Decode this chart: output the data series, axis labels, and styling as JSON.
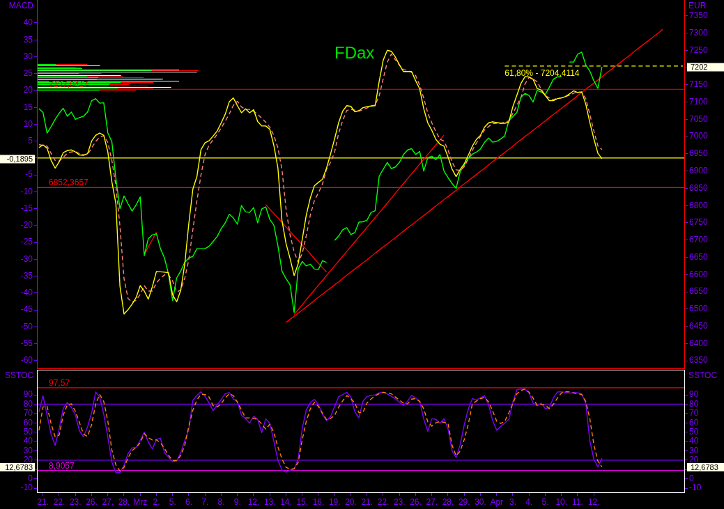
{
  "chart_data": [
    {
      "type": "line",
      "title": "FDax",
      "ylabel": "MACD",
      "y2label": "EUR",
      "categories": [
        null,
        null,
        null,
        null,
        null,
        null,
        null,
        null,
        null,
        null,
        null,
        null,
        null,
        null,
        null,
        null,
        null,
        null,
        null,
        null,
        null,
        null,
        null,
        null,
        null,
        null,
        null,
        null,
        null,
        null,
        null,
        null,
        null,
        null,
        null,
        null,
        null,
        null,
        null,
        null,
        null,
        null,
        null,
        null,
        null,
        null,
        null,
        null,
        null,
        null,
        null,
        null,
        null,
        null,
        null,
        null,
        null,
        null,
        null,
        null,
        null,
        null,
        null,
        null,
        null,
        null,
        null,
        null,
        null,
        null,
        null,
        null,
        null,
        null,
        null,
        null,
        null,
        null,
        null,
        null,
        null,
        null,
        null,
        null,
        null,
        null,
        null,
        null,
        null,
        null,
        null,
        null,
        null,
        null,
        null,
        null,
        null,
        null,
        null,
        null,
        null,
        null,
        null,
        null,
        null,
        null,
        null,
        null,
        null,
        null,
        null,
        null,
        null,
        null,
        null,
        null,
        null,
        null,
        null,
        null,
        null,
        null,
        null,
        null,
        null,
        null,
        null,
        null,
        null,
        null,
        null,
        null,
        null,
        null,
        null,
        null,
        null,
        null,
        null,
        null,
        null,
        null,
        null,
        null,
        null,
        null,
        null,
        null,
        null,
        null,
        null,
        null,
        null,
        null,
        null,
        null,
        null,
        null,
        null,
        null
      ],
      "ylim": [
        -62.5,
        46.8
      ],
      "yticks": [
        40,
        35,
        30,
        25,
        20,
        15,
        10,
        5,
        {
          "value": 0,
          "label": null
        },
        -5,
        -10,
        -15,
        -20,
        -25,
        -30,
        -35,
        -40,
        -45,
        -50,
        -55,
        -60
      ],
      "y2lim": [
        6326,
        7396
      ],
      "y2ticks": [
        7350,
        7300,
        7250,
        {
          "value": 7200,
          "label": null
        },
        7150,
        7100,
        7050,
        7000,
        6950,
        6900,
        6850,
        6800,
        6750,
        6700,
        6650,
        6600,
        6550,
        6500,
        6450,
        6400,
        6350
      ],
      "series": [
        {
          "color": "#ff0000",
          "axis": "y2",
          "values": [
            null,
            null,
            null,
            null,
            null,
            null,
            null,
            null,
            null,
            null,
            null,
            null,
            null,
            null,
            null,
            null,
            null,
            null,
            null,
            null,
            null,
            null,
            null,
            null,
            null,
            null,
            6658,
            6680,
            6701,
            6723,
            null,
            null,
            null,
            null,
            null,
            null,
            null,
            null,
            null,
            null,
            null,
            null,
            null,
            null,
            null,
            null,
            null,
            null,
            null,
            null,
            null,
            null,
            null,
            null,
            null,
            null,
            null,
            null,
            null,
            null,
            null,
            null,
            null,
            null,
            null,
            null,
            null,
            null,
            null,
            null,
            null,
            null,
            null,
            null,
            null,
            null,
            null,
            null,
            null,
            null,
            null,
            null,
            null,
            null,
            null,
            null,
            null,
            null,
            null,
            null,
            null,
            null,
            null,
            null,
            null,
            null,
            null,
            null,
            null,
            null,
            null,
            null,
            null,
            null,
            null,
            null,
            null,
            null,
            null,
            null,
            null,
            null,
            null,
            null,
            null,
            null,
            null,
            null,
            null,
            null,
            null,
            null,
            null,
            null,
            null,
            null,
            null,
            null,
            null,
            null,
            null,
            null,
            null,
            null,
            null,
            null,
            null,
            null,
            null,
            null,
            null,
            null,
            null,
            null,
            null,
            null,
            null,
            null,
            null,
            null,
            null,
            null,
            null,
            null,
            null,
            null,
            null,
            null,
            null,
            null
          ]
        },
        {
          "color": "#ff0000",
          "axis": "y2",
          "values": [
            null,
            null,
            null,
            null,
            null,
            null,
            null,
            null,
            null,
            null,
            null,
            null,
            null,
            null,
            null,
            null,
            null,
            null,
            null,
            null,
            null,
            null,
            null,
            null,
            null,
            null,
            null,
            null,
            null,
            null,
            null,
            null,
            null,
            null,
            null,
            null,
            null,
            null,
            null,
            null,
            null,
            null,
            null,
            null,
            null,
            null,
            null,
            null,
            null,
            null,
            null,
            null,
            null,
            null,
            null,
            null,
            6803,
            6790,
            6777,
            6764,
            6751,
            6738,
            6725,
            6712,
            6699,
            6686,
            6673,
            6660,
            6646,
            6633,
            6620,
            6607,
            null,
            null,
            null,
            null,
            null,
            null,
            null,
            null,
            null,
            null,
            null,
            null,
            null,
            null,
            null,
            null,
            null,
            null,
            null,
            null,
            null,
            null,
            null,
            null,
            null,
            null,
            null,
            null,
            null,
            null,
            null,
            null,
            null,
            null,
            null,
            null,
            null,
            null,
            null,
            null,
            null,
            null,
            null,
            null,
            null,
            null,
            null,
            null,
            null,
            null,
            null,
            null,
            null,
            null,
            null,
            null,
            null,
            null,
            null,
            null,
            null,
            null,
            null,
            null,
            null,
            null,
            null,
            null,
            null,
            null,
            null,
            null,
            null,
            null,
            null,
            null,
            null,
            null,
            null,
            null,
            null,
            null,
            null,
            null,
            null,
            null,
            null,
            null
          ]
        },
        {
          "color": "#ff0000",
          "axis": "y2",
          "values": [
            null,
            null,
            null,
            null,
            null,
            null,
            null,
            null,
            null,
            null,
            null,
            null,
            null,
            null,
            null,
            null,
            null,
            null,
            null,
            null,
            null,
            null,
            null,
            null,
            null,
            null,
            null,
            null,
            null,
            null,
            null,
            null,
            null,
            null,
            null,
            null,
            null,
            null,
            null,
            null,
            null,
            null,
            null,
            null,
            null,
            null,
            null,
            null,
            null,
            null,
            null,
            null,
            null,
            null,
            null,
            null,
            null,
            null,
            null,
            null,
            null,
            null,
            null,
            6484,
            6498,
            6512,
            6527,
            6541,
            6555,
            6569,
            6583,
            6597,
            6611,
            6625,
            6639,
            6653,
            6667,
            6681,
            6695,
            6709,
            6723,
            6737,
            6751,
            6765,
            6779,
            6793,
            6807,
            6821,
            6836,
            6850,
            6864,
            6878,
            6892,
            6906,
            6920,
            6934,
            6948,
            6962,
            6976,
            6990,
            7004,
            null,
            null,
            null,
            null,
            null,
            null,
            null,
            null,
            null,
            null,
            null,
            null,
            null,
            null,
            null,
            null,
            null,
            null,
            null,
            null,
            null,
            null,
            null,
            null,
            null,
            null,
            null,
            null,
            null,
            null,
            null,
            null,
            null,
            null,
            null,
            null,
            null,
            null,
            null,
            null,
            null,
            null,
            null,
            null,
            null,
            null,
            null,
            null,
            null,
            null,
            null,
            null,
            null,
            null,
            null,
            null,
            null,
            null,
            null
          ]
        },
        {
          "color": "#ff0000",
          "axis": "y2",
          "values": [
            null,
            null,
            null,
            null,
            null,
            null,
            null,
            null,
            null,
            null,
            null,
            null,
            null,
            null,
            null,
            null,
            null,
            null,
            null,
            null,
            null,
            null,
            null,
            null,
            null,
            null,
            null,
            null,
            null,
            null,
            null,
            null,
            null,
            null,
            null,
            null,
            null,
            null,
            null,
            null,
            null,
            null,
            null,
            null,
            null,
            null,
            null,
            null,
            null,
            null,
            null,
            null,
            null,
            null,
            null,
            null,
            null,
            null,
            null,
            null,
            null,
            6461,
            6470,
            6479,
            6488,
            6497,
            6506,
            6515,
            6525,
            6534,
            6543,
            6552,
            6561,
            6570,
            6579,
            6589,
            6598,
            6607,
            6616,
            6625,
            6634,
            6643,
            6652,
            6662,
            6671,
            6680,
            6689,
            6698,
            6707,
            6716,
            6726,
            6735,
            6744,
            6753,
            6762,
            6771,
            6780,
            6790,
            6799,
            6808,
            6817,
            6826,
            6835,
            6844,
            6854,
            6863,
            6872,
            6881,
            6890,
            6899,
            6908,
            6918,
            6927,
            6936,
            6945,
            6954,
            6963,
            6972,
            6982,
            6991,
            7000,
            7009,
            7018,
            7027,
            7036,
            7045,
            7055,
            7064,
            7073,
            7082,
            7091,
            7100,
            7109,
            7119,
            7128,
            7137,
            7146,
            7155,
            7164,
            7173,
            7183,
            7192,
            7201,
            7210,
            7219,
            7228,
            7237,
            7247,
            7256,
            7265,
            7274,
            7283,
            7292,
            7301,
            7311,
            null,
            null,
            null,
            null,
            null
          ]
        },
        {
          "name": "61,80% - 7204,4114",
          "color": "#ffff00",
          "axis": "y2",
          "line_style": "dashed",
          "values": [
            null,
            null,
            null,
            null,
            null,
            null,
            null,
            null,
            null,
            null,
            null,
            null,
            null,
            null,
            null,
            null,
            null,
            null,
            null,
            null,
            null,
            null,
            null,
            null,
            null,
            null,
            null,
            null,
            null,
            null,
            null,
            null,
            null,
            null,
            null,
            null,
            null,
            null,
            null,
            null,
            null,
            null,
            null,
            null,
            null,
            null,
            null,
            null,
            null,
            null,
            null,
            null,
            null,
            null,
            null,
            null,
            null,
            null,
            null,
            null,
            null,
            null,
            null,
            null,
            null,
            null,
            null,
            null,
            null,
            null,
            null,
            null,
            null,
            null,
            null,
            null,
            null,
            null,
            null,
            null,
            null,
            null,
            null,
            null,
            null,
            null,
            null,
            null,
            null,
            null,
            null,
            null,
            null,
            null,
            null,
            null,
            null,
            null,
            null,
            null,
            null,
            null,
            null,
            null,
            null,
            null,
            null,
            null,
            null,
            null,
            null,
            null,
            null,
            null,
            null,
            7204.4114,
            7204.4114,
            7204.4114,
            7204.4114,
            7204.4114,
            7204.4114,
            7204.4114,
            7204.4114,
            7204.4114,
            7204.4114,
            7204.4114,
            7204.4114,
            7204.4114,
            7204.4114,
            7204.4114,
            7204.4114,
            7204.4114,
            7204.4114,
            7204.4114,
            7204.4114,
            7204.4114,
            7204.4114,
            7204.4114,
            7204.4114,
            7204.4114,
            7204.4114,
            7204.4114,
            7204.4114,
            7204.4114,
            7204.4114,
            7204.4114,
            7204.4114,
            7204.4114,
            7204.4114,
            7204.4114,
            7204.4114,
            7204.4114,
            7204.4114,
            7204.4114,
            7204.4114,
            7204.4114,
            7204.4114,
            7204.4114,
            7204.4114,
            7204.4114
          ]
        },
        {
          "color": "#00ff00",
          "axis": "y2",
          "values": [
            7081,
            7070,
            7010,
            7029,
            7050,
            7068,
            7082,
            7059,
            7071,
            7050,
            7055,
            7059,
            7071,
            7104,
            7110,
            7097,
            7098,
            7011,
            6985,
            6878,
            6791,
            6828,
            6805,
            6784,
            6802,
            6825,
            6655,
            6704,
            6715,
            6718,
            6675,
            6648,
            6600,
            6525,
            6590,
            6610,
            6636,
            6648,
            6653,
            6675,
            6675,
            6675,
            6682,
            6696,
            6710,
            6733,
            6750,
            6775,
            6764,
            6746,
            6800,
            6782,
            6780,
            6794,
            6750,
            6790,
            6796,
            6760,
            6743,
            6683,
            6610,
            6588,
            6570,
            6490,
            6616,
            6638,
            6625,
            6630,
            6616,
            6615,
            6640,
            6635,
            null,
            6699,
            6712,
            6730,
            6736,
            6716,
            6722,
            6752,
            6753,
            6758,
            6780,
            6785,
            6885,
            6905,
            6925,
            6907,
            6912,
            6925,
            6948,
            6961,
            6965,
            6948,
            6957,
            6900,
            6939,
            6943,
            6933,
            6948,
            6900,
            6881,
            6864,
            6850,
            6898,
            6917,
            6937,
            6949,
            6955,
            6964,
            6983,
            6996,
            6984,
            6986,
            6993,
            7002,
            7046,
            7058,
            7070,
            7114,
            7125,
            7119,
            7100,
            7134,
            7129,
            7122,
            7143,
            7166,
            7173,
            7174,
            null,
            7216,
            7216,
            7239,
            7245,
            7208,
            7190,
            7162,
            7140,
            7202,
            null,
            null,
            null,
            null,
            null,
            null,
            null,
            null,
            null,
            null,
            null,
            null,
            null,
            null,
            null,
            null,
            null,
            null,
            null,
            null
          ]
        },
        {
          "color": "#ff8080",
          "axis": "y",
          "line_style": "dashed",
          "values": [
            4,
            3.7,
            3.5,
            1.4,
            -0.7,
            -0.9,
            0.2,
            1.4,
            1.8,
            1.9,
            1.3,
            1,
            1,
            3,
            4.9,
            6.2,
            6.6,
            4.6,
            -0.7,
            -8.3,
            -20.2,
            -35.7,
            -41.6,
            -42.7,
            -42.1,
            -40.4,
            -37.8,
            -39.4,
            -39.4,
            -37,
            -35.6,
            -34.6,
            -34.6,
            -36.4,
            -39.7,
            -39.1,
            -35.6,
            -30.1,
            -21.2,
            -12.7,
            -5,
            1,
            3.8,
            5.4,
            7,
            8.9,
            10.9,
            13.1,
            15.6,
            16.8,
            15.1,
            14.4,
            14.4,
            13.8,
            13,
            11.8,
            10.6,
            9.1,
            6.7,
            3,
            -3.4,
            -15.1,
            -22.8,
            -27.8,
            -30.9,
            -28.3,
            -23,
            -16.9,
            -12.6,
            -10.3,
            -7.7,
            -3.3,
            -1.3,
            1.8,
            7.4,
            11.1,
            14.1,
            14.4,
            14.2,
            13.9,
            14.3,
            14.8,
            15.4,
            15.7,
            18.4,
            23.5,
            28.4,
            30.8,
            29.1,
            27.5,
            26.2,
            25.9,
            25.4,
            24.4,
            21.6,
            17.7,
            13.3,
            10.4,
            7.8,
            5.6,
            5,
            2.4,
            -1.2,
            -3.5,
            -3.7,
            -2.6,
            -0.3,
            2.3,
            4.4,
            6.4,
            8.3,
            9.3,
            10.2,
            10.3,
            10.3,
            10.6,
            11,
            13.2,
            15.6,
            17.9,
            21.9,
            23.9,
            23.4,
            22.6,
            20.4,
            18.5,
            17.8,
            17.3,
            17.6,
            17.8,
            18.2,
            18.6,
            19.2,
            19.6,
            19.4,
            17.6,
            13,
            8,
            3.6,
            2.5,
            null,
            null,
            null,
            null,
            null,
            null,
            null,
            null,
            null,
            null,
            null,
            null,
            null,
            null,
            null,
            null,
            null,
            null,
            null,
            null
          ]
        },
        {
          "color": "#ffff00",
          "axis": "y",
          "values": [
            3.1,
            3.9,
            2.9,
            -0.7,
            -3,
            -1.1,
            1.6,
            2.2,
            2.4,
            1.8,
            0.9,
            0.8,
            1.3,
            5,
            6.7,
            7.4,
            6.7,
            1.8,
            -7,
            -13.6,
            -38,
            -46.2,
            -44.9,
            -43.3,
            -41.3,
            -37.8,
            -39.4,
            -41.8,
            -38.1,
            -33.6,
            -33.7,
            -33.8,
            -34,
            -40.5,
            -42.6,
            -39.2,
            -31.4,
            -19.4,
            -9.2,
            -5.5,
            2.5,
            4.5,
            5.1,
            6.5,
            8,
            10.4,
            13,
            16.7,
            17.8,
            15.5,
            13.4,
            14.6,
            13.4,
            14.3,
            10.8,
            9.5,
            9.5,
            8.5,
            3.7,
            -3,
            -18.5,
            -25.3,
            -29.8,
            -34.8,
            -31.3,
            -24.1,
            -16.9,
            -11.8,
            -8.2,
            -7.2,
            -6.3,
            -3,
            1.2,
            5.7,
            10.5,
            13.9,
            15.5,
            15.3,
            13.7,
            14,
            14.9,
            15.2,
            15.4,
            15.5,
            22.7,
            29,
            31.9,
            31.6,
            29.9,
            27.6,
            25.6,
            25.6,
            25.6,
            22.9,
            20.5,
            14.6,
            10.4,
            8.2,
            5.5,
            4.1,
            3.5,
            0.3,
            -3.3,
            -5.5,
            -3.4,
            -1.7,
            0.8,
            3.5,
            5.5,
            6.7,
            9.1,
            10.4,
            10.7,
            10.5,
            10.3,
            10.3,
            10.6,
            15.2,
            18.6,
            22.1,
            24.1,
            24,
            23.3,
            20.6,
            20.1,
            18.5,
            17,
            17,
            17.6,
            17.8,
            18.2,
            19,
            19.9,
            19.4,
            19.6,
            16,
            10.6,
            5.7,
            1.4,
            -0.2,
            null,
            null,
            null,
            null,
            null,
            null,
            null,
            null,
            null,
            null,
            null,
            null,
            null,
            null,
            null,
            null,
            null,
            null,
            null,
            null
          ]
        }
      ],
      "ref_lines": [
        {
          "axis": "y2",
          "value": 7137.0417,
          "label": "7137,0417",
          "color": "#ff0000"
        },
        {
          "axis": "y2",
          "value": 6852.3657,
          "label": "6852,3657",
          "color": "#ff0000"
        },
        {
          "axis": "y",
          "value": 0,
          "color": "#ffff00"
        }
      ],
      "annotations": [
        "-0,1895",
        "7202"
      ],
      "legend": false,
      "grid": false,
      "marker": "none"
    },
    {
      "type": "line",
      "ylabel": "SSTOC",
      "y2label": "SSTOC",
      "categories": [
        null,
        "21.",
        null,
        null,
        null,
        "22.",
        null,
        null,
        null,
        "23.",
        null,
        null,
        null,
        "26.",
        null,
        null,
        null,
        "27.",
        null,
        null,
        null,
        "28.",
        null,
        null,
        null,
        "Mrz",
        null,
        null,
        null,
        "2.",
        null,
        null,
        null,
        "5.",
        null,
        null,
        null,
        "6.",
        null,
        null,
        null,
        "7.",
        null,
        null,
        null,
        "8.",
        null,
        null,
        null,
        "9.",
        null,
        null,
        null,
        "12.",
        null,
        null,
        null,
        "13.",
        null,
        null,
        null,
        "14.",
        null,
        null,
        null,
        "15.",
        null,
        null,
        null,
        "16.",
        null,
        null,
        null,
        "19.",
        null,
        null,
        null,
        "20.",
        null,
        null,
        null,
        "21.",
        null,
        null,
        null,
        "22.",
        null,
        null,
        null,
        "23.",
        null,
        null,
        null,
        "26.",
        null,
        null,
        null,
        "27.",
        null,
        null,
        null,
        "28.",
        null,
        null,
        null,
        "29.",
        null,
        null,
        null,
        "30.",
        null,
        null,
        null,
        "Apr",
        null,
        null,
        null,
        "3.",
        null,
        null,
        null,
        "4.",
        null,
        null,
        null,
        "5.",
        null,
        null,
        null,
        "10.",
        null,
        null,
        null,
        "11.",
        null,
        null,
        null,
        "12.",
        null,
        null,
        null,
        null,
        null,
        null,
        null,
        null,
        null,
        null,
        null,
        null,
        null,
        null,
        null,
        null,
        null,
        null,
        null,
        null,
        null,
        null
      ],
      "ylim": [
        -15.2,
        116.9
      ],
      "yticks": [
        90,
        80,
        70,
        60,
        50,
        40,
        30,
        20,
        {
          "value": 10,
          "label": null
        },
        0,
        -10
      ],
      "y2lim": [
        -15.2,
        116.9
      ],
      "y2ticks": [
        90,
        80,
        70,
        60,
        50,
        40,
        30,
        20,
        {
          "value": 10,
          "label": null
        },
        0,
        -10
      ],
      "series": [
        {
          "color": "#8000ff",
          "values": [
            71.6,
            89,
            68.5,
            47.6,
            35.9,
            53.5,
            75.4,
            81.7,
            76.6,
            68.4,
            51.4,
            44.9,
            55.7,
            70.5,
            93,
            87.6,
            69.1,
            44.8,
            18,
            6.3,
            6.8,
            14.3,
            27.1,
            33.2,
            33.7,
            41.3,
            50.1,
            39.4,
            32,
            42,
            43.6,
            28,
            23,
            18.3,
            19.2,
            28,
            40.8,
            53.1,
            84.1,
            89.5,
            93.3,
            88.3,
            81.3,
            73,
            79.1,
            85.1,
            91.3,
            92.4,
            85.4,
            82.8,
            68.1,
            64.7,
            59.7,
            67,
            63.6,
            49.5,
            64.2,
            59.6,
            40.3,
            19.8,
            9.5,
            7.1,
            9.4,
            10.3,
            21.1,
            53.9,
            73.9,
            81.6,
            85.2,
            79.7,
            69.1,
            62.4,
            66.7,
            77.6,
            88.1,
            90.3,
            92.8,
            87.5,
            71.6,
            65.4,
            83.1,
            88.2,
            89.4,
            89.9,
            92.1,
            92.8,
            90.9,
            88.4,
            85.8,
            82.1,
            78.7,
            83.2,
            89.4,
            86.5,
            83.3,
            64,
            51,
            64.4,
            63.7,
            59.5,
            64.5,
            53.5,
            29.8,
            22.8,
            36.6,
            57.8,
            74.7,
            86,
            84.3,
            86.7,
            89.2,
            79.6,
            62.6,
            52.1,
            56,
            59.8,
            63.5,
            82.1,
            95.5,
            96.3,
            96.1,
            92.1,
            81.2,
            78.2,
            81.2,
            75.3,
            76.3,
            86.7,
            93,
            93.3,
            92.7,
            91.8,
            92.5,
            92.1,
            91.2,
            81.1,
            41.1,
            21,
            12.7,
            22,
            null,
            null,
            null,
            null,
            null,
            null,
            null,
            null,
            null,
            null,
            null,
            null,
            null,
            null,
            null,
            null,
            null,
            null,
            null,
            null
          ]
        },
        {
          "color": "#ff8000",
          "line_style": "dashed",
          "values": [
            51.9,
            77,
            77.9,
            58.9,
            45,
            46.9,
            68.4,
            79.2,
            80.3,
            72.3,
            60.3,
            47.9,
            45.4,
            57.9,
            80,
            90.4,
            82.8,
            61.9,
            30.8,
            14.7,
            8.4,
            12.3,
            22.4,
            30.5,
            33.4,
            38.7,
            48.5,
            43.9,
            41.6,
            41.7,
            38.7,
            32.5,
            25.1,
            19.6,
            19.5,
            24.9,
            36,
            56.2,
            73.6,
            84.3,
            90.6,
            90.3,
            87.7,
            78.4,
            76.9,
            80.4,
            86.9,
            91.1,
            89.2,
            82,
            73.9,
            65.3,
            65.3,
            64.8,
            63.6,
            58.7,
            53.2,
            58.5,
            49.7,
            34,
            21.3,
            12.5,
            10,
            10.9,
            17.5,
            41.8,
            61.6,
            75,
            82,
            77.5,
            70.4,
            63.5,
            64.6,
            68.1,
            76.8,
            83.6,
            89.2,
            86.1,
            81,
            70.9,
            71.3,
            81.3,
            85.6,
            88.9,
            91.2,
            92.7,
            92,
            91.1,
            87.7,
            84.3,
            81.1,
            80.2,
            85.4,
            86,
            82.9,
            75,
            61.1,
            56.5,
            60.1,
            61.3,
            60.6,
            59.3,
            35.9,
            24.7,
            29.7,
            42.1,
            58.3,
            80.3,
            83.3,
            85.9,
            87.2,
            82.5,
            72.8,
            61.8,
            59.3,
            61.4,
            70.6,
            80.6,
            91.2,
            94.5,
            96.3,
            92.8,
            86.6,
            78.8,
            79.7,
            79,
            75.1,
            79.8,
            86.4,
            92,
            93.4,
            93.1,
            92,
            91.2,
            90.3,
            82.9,
            64.7,
            36.7,
            18.8,
            12.7,
            null,
            null,
            null,
            null,
            null,
            null,
            null,
            null,
            null,
            null,
            null,
            null,
            null,
            null,
            null,
            null,
            null,
            null,
            null,
            null
          ]
        }
      ],
      "ref_lines": [
        {
          "axis": "y",
          "value": 97.57,
          "label": "97,57",
          "color": "#ff0000"
        },
        {
          "axis": "y",
          "value": 80,
          "color": "#8000ff"
        },
        {
          "axis": "y",
          "value": 20,
          "color": "#8000ff"
        },
        {
          "axis": "y",
          "value": 8.9057,
          "label": "8,9057",
          "color": "#e000e0"
        }
      ],
      "annotations": [
        "12,6783",
        "12,6783"
      ],
      "legend": false,
      "grid": false,
      "marker": "none"
    }
  ]
}
